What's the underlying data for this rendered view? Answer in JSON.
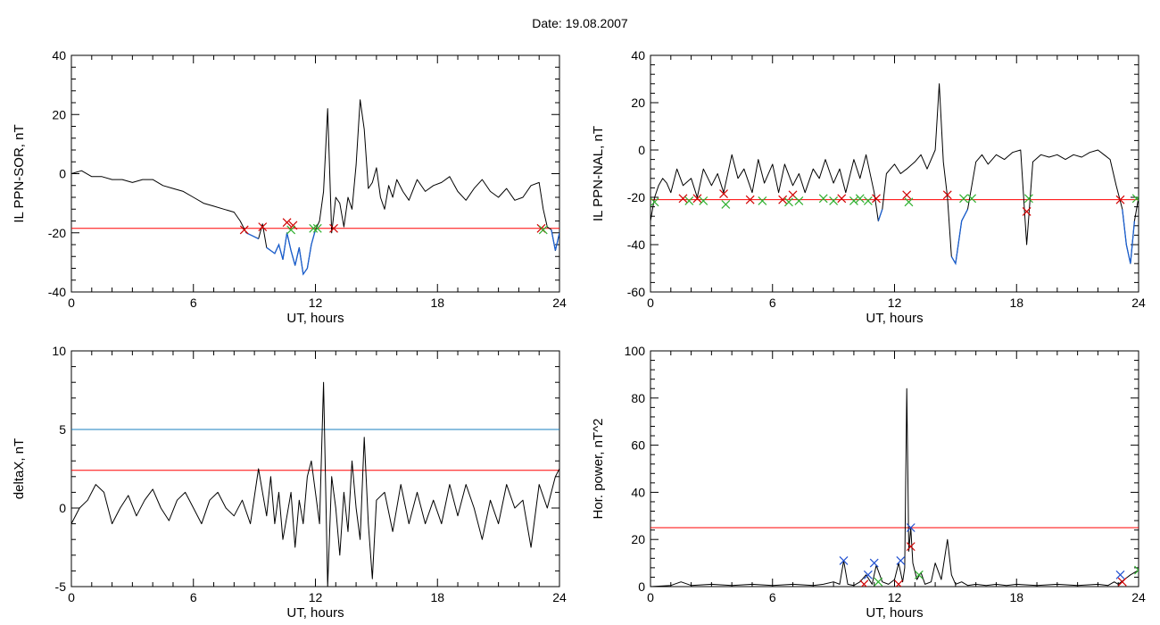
{
  "page_title": "Date:  19.08.2007",
  "colors": {
    "frame": "#000000",
    "data_line": "#000000",
    "threshold_red": "#ff0000",
    "threshold_blue": "#1a7fbf",
    "below_threshold": "#1a5fd0",
    "marker_red": "#d00000",
    "marker_green": "#30b030",
    "marker_blue": "#2050d0"
  },
  "chart_data": [
    {
      "type": "line",
      "id": "sor",
      "ylabel": "IL PPN-SOR, nT",
      "xlabel": "UT, hours",
      "xlim": [
        0,
        24
      ],
      "ylim": [
        -40,
        40
      ],
      "x_ticks": [
        "0",
        "6",
        "12",
        "18",
        "24"
      ],
      "y_ticks": [
        "-40",
        "-20",
        "0",
        "20",
        "40"
      ],
      "threshold_lines": [
        {
          "y": -18.5,
          "color": "red"
        }
      ],
      "series": [
        {
          "x": [
            0,
            0.5,
            1,
            1.5,
            2,
            2.5,
            3,
            3.5,
            4,
            4.5,
            5,
            5.5,
            6,
            6.5,
            7,
            7.5,
            8,
            8.3,
            8.6,
            8.9,
            9.2,
            9.4,
            9.6,
            9.8,
            10,
            10.2,
            10.4,
            10.6,
            10.8,
            11,
            11.2,
            11.4,
            11.6,
            11.8,
            12,
            12.2,
            12.4,
            12.6,
            12.8,
            13,
            13.2,
            13.4,
            13.6,
            13.8,
            14,
            14.2,
            14.4,
            14.6,
            14.8,
            15,
            15.2,
            15.4,
            15.6,
            15.8,
            16,
            16.3,
            16.6,
            17,
            17.4,
            17.8,
            18.2,
            18.6,
            19,
            19.4,
            19.8,
            20.2,
            20.6,
            21,
            21.4,
            21.8,
            22.2,
            22.6,
            23,
            23.2,
            23.4,
            23.6,
            23.8,
            24
          ],
          "values": [
            0,
            1,
            -1,
            -1,
            -2,
            -2,
            -3,
            -2,
            -2,
            -4,
            -5,
            -6,
            -8,
            -10,
            -11,
            -12,
            -13,
            -16,
            -20,
            -21,
            -22,
            -17,
            -25,
            -26,
            -27,
            -24,
            -29,
            -20,
            -26,
            -31,
            -25,
            -34,
            -32,
            -24,
            -19,
            -16,
            -6,
            22,
            -20,
            -8,
            -10,
            -18,
            -8,
            -12,
            3,
            25,
            15,
            -5,
            -3,
            2,
            -8,
            -12,
            -4,
            -8,
            -2,
            -6,
            -9,
            -2,
            -6,
            -4,
            -3,
            -1,
            -6,
            -9,
            -5,
            -2,
            -6,
            -8,
            -5,
            -9,
            -8,
            -4,
            -3,
            -12,
            -18,
            -19,
            -26,
            -20
          ],
          "markers": [
            {
              "x": 8.5,
              "y": -19,
              "color": "red"
            },
            {
              "x": 9.4,
              "y": -18,
              "color": "red"
            },
            {
              "x": 10.6,
              "y": -16.5,
              "color": "red"
            },
            {
              "x": 10.9,
              "y": -17.5,
              "color": "red"
            },
            {
              "x": 10.8,
              "y": -19,
              "color": "green"
            },
            {
              "x": 11.9,
              "y": -18.5,
              "color": "green"
            },
            {
              "x": 12.1,
              "y": -18.5,
              "color": "green"
            },
            {
              "x": 12.9,
              "y": -18.5,
              "color": "red"
            },
            {
              "x": 23.1,
              "y": -18.5,
              "color": "red"
            },
            {
              "x": 23.2,
              "y": -19,
              "color": "green"
            }
          ]
        }
      ]
    },
    {
      "type": "line",
      "id": "nal",
      "ylabel": "IL PPN-NAL, nT",
      "xlabel": "UT, hours",
      "xlim": [
        0,
        24
      ],
      "ylim": [
        -60,
        40
      ],
      "x_ticks": [
        "0",
        "6",
        "12",
        "18",
        "24"
      ],
      "y_ticks": [
        "-60",
        "-40",
        "-20",
        "0",
        "20",
        "40"
      ],
      "threshold_lines": [
        {
          "y": -21,
          "color": "red"
        }
      ],
      "series": [
        {
          "x": [
            0,
            0.2,
            0.4,
            0.6,
            0.8,
            1,
            1.3,
            1.6,
            2,
            2.3,
            2.6,
            3,
            3.3,
            3.6,
            4,
            4.3,
            4.6,
            5,
            5.3,
            5.6,
            6,
            6.3,
            6.6,
            7,
            7.3,
            7.6,
            8,
            8.3,
            8.6,
            9,
            9.3,
            9.6,
            10,
            10.3,
            10.6,
            11,
            11.2,
            11.4,
            11.6,
            11.8,
            12,
            12.3,
            12.6,
            13,
            13.3,
            13.6,
            14,
            14.2,
            14.4,
            14.6,
            14.8,
            15,
            15.3,
            15.6,
            16,
            16.3,
            16.6,
            17,
            17.4,
            17.8,
            18.2,
            18.5,
            18.8,
            19.2,
            19.6,
            20,
            20.4,
            20.8,
            21.2,
            21.6,
            22,
            22.3,
            22.6,
            22.9,
            23.2,
            23.4,
            23.6,
            23.8,
            24
          ],
          "values": [
            -30,
            -20,
            -15,
            -12,
            -14,
            -18,
            -8,
            -15,
            -12,
            -20,
            -8,
            -15,
            -10,
            -18,
            -2,
            -12,
            -8,
            -18,
            -4,
            -14,
            -6,
            -18,
            -6,
            -15,
            -10,
            -18,
            -8,
            -12,
            -4,
            -14,
            -8,
            -18,
            -4,
            -12,
            -2,
            -18,
            -30,
            -25,
            -10,
            -8,
            -6,
            -10,
            -8,
            -5,
            -2,
            -8,
            0,
            28,
            -5,
            -20,
            -45,
            -48,
            -30,
            -25,
            -5,
            -2,
            -6,
            -2,
            -4,
            -1,
            0,
            -40,
            -5,
            -2,
            -3,
            -2,
            -4,
            -2,
            -3,
            -1,
            0,
            -2,
            -4,
            -15,
            -25,
            -40,
            -48,
            -30,
            -20
          ],
          "markers": [
            {
              "x": 0.2,
              "y": -22,
              "color": "green"
            },
            {
              "x": 1.6,
              "y": -20.5,
              "color": "red"
            },
            {
              "x": 1.9,
              "y": -21.5,
              "color": "green"
            },
            {
              "x": 2.3,
              "y": -20.5,
              "color": "red"
            },
            {
              "x": 2.6,
              "y": -21.5,
              "color": "green"
            },
            {
              "x": 3.6,
              "y": -18.5,
              "color": "red"
            },
            {
              "x": 3.7,
              "y": -23,
              "color": "green"
            },
            {
              "x": 4.9,
              "y": -21,
              "color": "red"
            },
            {
              "x": 5.5,
              "y": -21.5,
              "color": "green"
            },
            {
              "x": 6.5,
              "y": -21,
              "color": "red"
            },
            {
              "x": 6.8,
              "y": -22,
              "color": "green"
            },
            {
              "x": 7.0,
              "y": -19,
              "color": "red"
            },
            {
              "x": 7.3,
              "y": -21.5,
              "color": "green"
            },
            {
              "x": 8.5,
              "y": -20.5,
              "color": "green"
            },
            {
              "x": 9.0,
              "y": -21.5,
              "color": "green"
            },
            {
              "x": 9.4,
              "y": -20.5,
              "color": "red"
            },
            {
              "x": 10.0,
              "y": -21.5,
              "color": "green"
            },
            {
              "x": 10.3,
              "y": -20.5,
              "color": "green"
            },
            {
              "x": 10.7,
              "y": -21.5,
              "color": "green"
            },
            {
              "x": 11.1,
              "y": -20.5,
              "color": "red"
            },
            {
              "x": 12.6,
              "y": -19,
              "color": "red"
            },
            {
              "x": 12.7,
              "y": -22,
              "color": "green"
            },
            {
              "x": 14.6,
              "y": -19,
              "color": "red"
            },
            {
              "x": 15.4,
              "y": -20.5,
              "color": "green"
            },
            {
              "x": 15.8,
              "y": -20.5,
              "color": "green"
            },
            {
              "x": 18.5,
              "y": -26,
              "color": "red"
            },
            {
              "x": 18.6,
              "y": -20.5,
              "color": "green"
            },
            {
              "x": 23.1,
              "y": -21,
              "color": "red"
            },
            {
              "x": 23.9,
              "y": -20.5,
              "color": "green"
            }
          ]
        }
      ]
    },
    {
      "type": "line",
      "id": "deltax",
      "ylabel": "deltaX, nT",
      "xlabel": "UT, hours",
      "xlim": [
        0,
        24
      ],
      "ylim": [
        -5,
        10
      ],
      "x_ticks": [
        "0",
        "6",
        "12",
        "18",
        "24"
      ],
      "y_ticks": [
        "-5",
        "0",
        "5",
        "10"
      ],
      "threshold_lines": [
        {
          "y": 5,
          "color": "blue"
        },
        {
          "y": 2.4,
          "color": "red"
        }
      ],
      "series": [
        {
          "x": [
            0,
            0.4,
            0.8,
            1.2,
            1.6,
            2,
            2.4,
            2.8,
            3.2,
            3.6,
            4,
            4.4,
            4.8,
            5.2,
            5.6,
            6,
            6.4,
            6.8,
            7.2,
            7.6,
            8,
            8.4,
            8.8,
            9.2,
            9.4,
            9.6,
            9.8,
            10,
            10.2,
            10.4,
            10.6,
            10.8,
            11,
            11.2,
            11.4,
            11.6,
            11.8,
            12,
            12.2,
            12.4,
            12.6,
            12.8,
            13,
            13.2,
            13.4,
            13.6,
            13.8,
            14,
            14.2,
            14.4,
            14.6,
            14.8,
            15,
            15.4,
            15.8,
            16.2,
            16.6,
            17,
            17.4,
            17.8,
            18.2,
            18.6,
            19,
            19.4,
            19.8,
            20.2,
            20.6,
            21,
            21.4,
            21.8,
            22.2,
            22.6,
            23,
            23.4,
            23.8,
            24
          ],
          "values": [
            -1,
            0,
            0.5,
            1.5,
            1,
            -1,
            0,
            0.8,
            -0.5,
            0.5,
            1.2,
            0,
            -0.8,
            0.5,
            1,
            0,
            -1,
            0.5,
            1,
            0,
            -0.5,
            0.5,
            -1,
            2.5,
            1,
            -0.5,
            2,
            -1,
            1,
            -2,
            -0.5,
            1,
            -2.5,
            0.5,
            -1,
            2,
            3,
            1,
            -1,
            8,
            -5,
            2,
            0,
            -3,
            1,
            -1.5,
            3,
            0,
            -2,
            4.5,
            -1,
            -4.5,
            0.5,
            1,
            -1.5,
            1.5,
            -1,
            1,
            -1,
            0.5,
            -1,
            1.5,
            -0.5,
            1.5,
            0,
            -2,
            0.5,
            -1,
            1.5,
            0,
            0.5,
            -2.5,
            1.5,
            0,
            2,
            2.5
          ],
          "markers": []
        }
      ]
    },
    {
      "type": "line",
      "id": "hpower",
      "ylabel": "Hor. power, nT^2",
      "xlabel": "UT, hours",
      "xlim": [
        0,
        24
      ],
      "ylim": [
        0,
        100
      ],
      "x_ticks": [
        "0",
        "6",
        "12",
        "18",
        "24"
      ],
      "y_ticks": [
        "0",
        "20",
        "40",
        "60",
        "80",
        "100"
      ],
      "threshold_lines": [
        {
          "y": 25,
          "color": "red"
        }
      ],
      "series": [
        {
          "x": [
            0,
            1,
            1.5,
            2,
            3,
            4,
            5,
            6,
            7,
            8,
            8.5,
            9,
            9.3,
            9.5,
            9.7,
            10,
            10.3,
            10.6,
            10.9,
            11.1,
            11.4,
            11.7,
            12,
            12.2,
            12.4,
            12.5,
            12.6,
            12.7,
            12.8,
            12.9,
            13.1,
            13.3,
            13.5,
            13.8,
            14,
            14.3,
            14.6,
            14.8,
            15,
            15.3,
            15.6,
            16,
            16.5,
            17,
            17.5,
            18,
            19,
            20,
            21,
            22,
            22.5,
            22.8,
            23,
            23.3,
            23.6,
            24
          ],
          "values": [
            0,
            0.5,
            2,
            0.5,
            1,
            0.5,
            1,
            0.5,
            1,
            0.5,
            1,
            2,
            1,
            11,
            1,
            0.5,
            2,
            5,
            1,
            9,
            2,
            1,
            3,
            10,
            2,
            8,
            84,
            15,
            25,
            10,
            3,
            6,
            1,
            2,
            10,
            3,
            20,
            5,
            1,
            2,
            0.5,
            1,
            0.5,
            1,
            0.5,
            1,
            0.5,
            1,
            0.5,
            1,
            0.5,
            2,
            1,
            3,
            5,
            7
          ],
          "markers": [
            {
              "x": 9.5,
              "y": 11,
              "color": "blue"
            },
            {
              "x": 10.7,
              "y": 5,
              "color": "blue"
            },
            {
              "x": 11.0,
              "y": 10,
              "color": "blue"
            },
            {
              "x": 12.3,
              "y": 11,
              "color": "blue"
            },
            {
              "x": 12.8,
              "y": 25,
              "color": "blue"
            },
            {
              "x": 12.8,
              "y": 17,
              "color": "red"
            },
            {
              "x": 10.5,
              "y": 1,
              "color": "red"
            },
            {
              "x": 11.2,
              "y": 2,
              "color": "green"
            },
            {
              "x": 12.2,
              "y": 1,
              "color": "red"
            },
            {
              "x": 13.2,
              "y": 5,
              "color": "green"
            },
            {
              "x": 23.1,
              "y": 5,
              "color": "blue"
            },
            {
              "x": 23.2,
              "y": 2,
              "color": "red"
            },
            {
              "x": 24.0,
              "y": 7,
              "color": "green"
            }
          ]
        }
      ]
    }
  ]
}
